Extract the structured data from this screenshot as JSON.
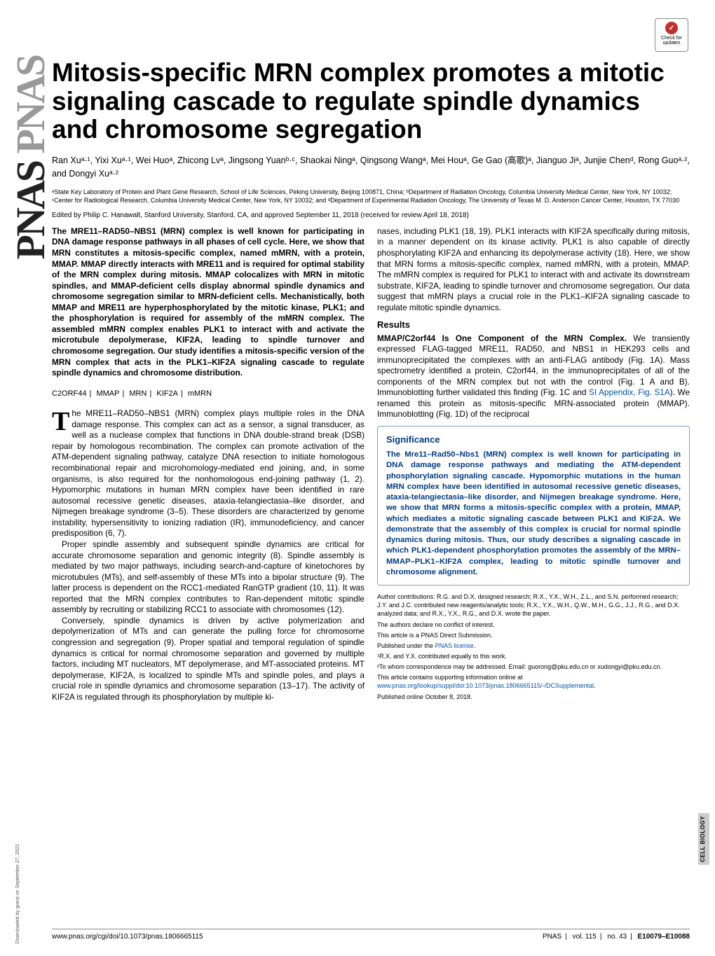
{
  "journal": {
    "vertical_brand_dark": "PNAS",
    "vertical_brand_light": "PNAS",
    "side_category": "CELL BIOLOGY"
  },
  "check_updates": {
    "icon_glyph": "✓",
    "line1": "Check for",
    "line2": "updates"
  },
  "title": "Mitosis-specific MRN complex promotes a mitotic signaling cascade to regulate spindle dynamics and chromosome segregation",
  "authors_html": "Ran Xuᵃ·¹, Yixi Xuᵃ·¹, Wei Huoᵃ, Zhicong Lvᵃ, Jingsong Yuanᵇ·ᶜ, Shaokai Ningᵃ, Qingsong Wangᵃ, Mei Houᵃ, Ge Gao (高歌)ᵃ, Jianguo Jiᵃ, Junjie Chenᵈ, Rong Guoᵃ·², and Dongyi Xuᵃ·²",
  "affiliations": "ᵃState Key Laboratory of Protein and Plant Gene Research, School of Life Sciences, Peking University, Beijing 100871, China; ᵇDepartment of Radiation Oncology, Columbia University Medical Center, New York, NY 10032; ᶜCenter for Radiological Research, Columbia University Medical Center, New York, NY 10032; and ᵈDepartment of Experimental Radiation Oncology, The University of Texas M. D. Anderson Cancer Center, Houston, TX 77030",
  "edited": "Edited by Philip C. Hanawalt, Stanford University, Stanford, CA, and approved September 11, 2018 (received for review April 18, 2018)",
  "abstract": "The MRE11–RAD50–NBS1 (MRN) complex is well known for participating in DNA damage response pathways in all phases of cell cycle. Here, we show that MRN constitutes a mitosis-specific complex, named mMRN, with a protein, MMAP. MMAP directly interacts with MRE11 and is required for optimal stability of the MRN complex during mitosis. MMAP colocalizes with MRN in mitotic spindles, and MMAP-deficient cells display abnormal spindle dynamics and chromosome segregation similar to MRN-deficient cells. Mechanistically, both MMAP and MRE11 are hyperphosphorylated by the mitotic kinase, PLK1; and the phosphorylation is required for assembly of the mMRN complex. The assembled mMRN complex enables PLK1 to interact with and activate the microtubule depolymerase, KIF2A, leading to spindle turnover and chromosome segregation. Our study identifies a mitosis-specific version of the MRN complex that acts in the PLK1–KIF2A signaling cascade to regulate spindle dynamics and chromosome distribution.",
  "keywords": [
    "C2ORF44",
    "MMAP",
    "MRN",
    "KIF2A",
    "mMRN"
  ],
  "body_left": {
    "p1_dropcap": "T",
    "p1": "he MRE11–RAD50–NBS1 (MRN) complex plays multiple roles in the DNA damage response. This complex can act as a sensor, a signal transducer, as well as a nuclease complex that functions in DNA double-strand break (DSB) repair by homologous recombination. The complex can promote activation of the ATM-dependent signaling pathway, catalyze DNA resection to initiate homologous recombinational repair and microhomology-mediated end joining, and, in some organisms, is also required for the nonhomologous end-joining pathway (1, 2). Hypomorphic mutations in human MRN complex have been identified in rare autosomal recessive genetic diseases, ataxia-telangiectasia–like disorder, and Nijmegen breakage syndrome (3–5). These disorders are characterized by genome instability, hypersensitivity to ionizing radiation (IR), immunodeficiency, and cancer predisposition (6, 7).",
    "p2": "Proper spindle assembly and subsequent spindle dynamics are critical for accurate chromosome separation and genomic integrity (8). Spindle assembly is mediated by two major pathways, including search-and-capture of kinetochores by microtubules (MTs), and self-assembly of these MTs into a bipolar structure (9). The latter process is dependent on the RCC1-mediated RanGTP gradient (10, 11). It was reported that the MRN complex contributes to Ran-dependent mitotic spindle assembly by recruiting or stabilizing RCC1 to associate with chromosomes (12).",
    "p3": "Conversely, spindle dynamics is driven by active polymerization and depolymerization of MTs and can generate the pulling force for chromosome congression and segregation (9). Proper spatial and temporal regulation of spindle dynamics is critical for normal chromosome separation and governed by multiple factors, including MT nucleators, MT depolymerase, and MT-associated proteins. MT depolymerase, KIF2A, is localized to spindle MTs and spindle poles, and plays a crucial role in spindle dynamics and chromosome separation (13–17). The activity of KIF2A is regulated through its phosphorylation by multiple ki-"
  },
  "body_right": {
    "p1": "nases, including PLK1 (18, 19). PLK1 interacts with KIF2A specifically during mitosis, in a manner dependent on its kinase activity. PLK1 is also capable of directly phosphorylating KIF2A and enhancing its depolymerase activity (18). Here, we show that MRN forms a mitosis-specific complex, named mMRN, with a protein, MMAP. The mMRN complex is required for PLK1 to interact with and activate its downstream substrate, KIF2A, leading to spindle turnover and chromosome segregation. Our data suggest that mMRN plays a crucial role in the PLK1–KIF2A signaling cascade to regulate mitotic spindle dynamics.",
    "results_h": "Results",
    "p2_runin": "MMAP/C2orf44 Is One Component of the MRN Complex.",
    "p2": " We transiently expressed FLAG-tagged MRE11, RAD50, and NBS1 in HEK293 cells and immunoprecipitated the complexes with an anti-FLAG antibody (Fig. 1A). Mass spectrometry identified a protein, C2orf44, in the immunoprecipitates of all of the components of the MRN complex but not with the control (Fig. 1 A and B). Immunoblotting further validated this finding (Fig. 1C and ",
    "p2_link": "SI Appendix, Fig. S1A",
    "p2_tail": "). We renamed this protein as mitosis-specific MRN-associated protein (MMAP). Immunoblotting (Fig. 1D) of the reciprocal"
  },
  "significance": {
    "heading": "Significance",
    "body": "The Mre11–Rad50–Nbs1 (MRN) complex is well known for participating in DNA damage response pathways and mediating the ATM-dependent phosphorylation signaling cascade. Hypomorphic mutations in the human MRN complex have been identified in autosomal recessive genetic diseases, ataxia-telangiectasia–like disorder, and Nijmegen breakage syndrome. Here, we show that MRN forms a mitosis-specific complex with a protein, MMAP, which mediates a mitotic signaling cascade between PLK1 and KIF2A. We demonstrate that the assembly of this complex is crucial for normal spindle dynamics during mitosis. Thus, our study describes a signaling cascade in which PLK1-dependent phosphorylation promotes the assembly of the MRN–MMAP–PLK1–KIF2A complex, leading to mitotic spindle turnover and chromosome alignment."
  },
  "meta": {
    "contributions": "Author contributions: R.G. and D.X. designed research; R.X., Y.X., W.H., Z.L., and S.N. performed research; J.Y. and J.C. contributed new reagents/analytic tools; R.X., Y.X., W.H., Q.W., M.H., G.G., J.J., R.G., and D.X. analyzed data; and R.X., Y.X., R.G., and D.X. wrote the paper.",
    "conflict": "The authors declare no conflict of interest.",
    "direct": "This article is a PNAS Direct Submission.",
    "license_pre": "Published under the ",
    "license_link": "PNAS license",
    "license_post": ".",
    "note1": "¹R.X. and Y.X. contributed equally to this work.",
    "note2": "²To whom correspondence may be addressed. Email: guorong@pku.edu.cn or xudongyi@pku.edu.cn.",
    "supp_pre": "This article contains supporting information online at ",
    "supp_link": "www.pnas.org/lookup/suppl/doi:10.1073/pnas.1806665115/-/DCSupplemental",
    "supp_post": ".",
    "pubdate": "Published online October 8, 2018."
  },
  "footer": {
    "doi": "www.pnas.org/cgi/doi/10.1073/pnas.1806665115",
    "brand": "PNAS",
    "vol": "vol. 115",
    "no": "no. 43",
    "pages": "E10079–E10088"
  },
  "download_note": "Downloaded by guest on September 27, 2021"
}
